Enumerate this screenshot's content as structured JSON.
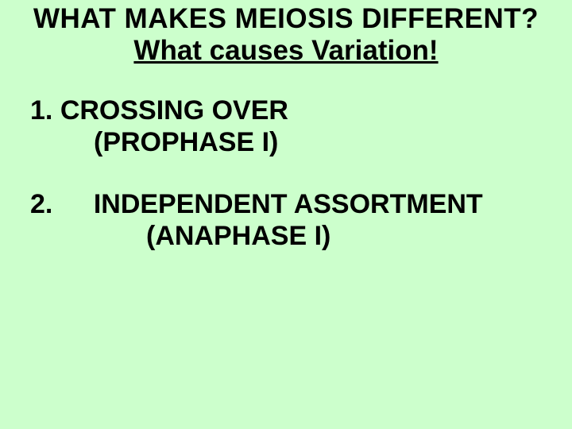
{
  "colors": {
    "background": "#ccffcc",
    "text": "#000000"
  },
  "typography": {
    "family": "Comic Sans MS",
    "title_fontsize_pt": 35,
    "body_fontsize_pt": 34,
    "weight": "bold"
  },
  "title": {
    "line1": "WHAT MAKES MEIOSIS DIFFERENT?",
    "line2": "What causes Variation!"
  },
  "items": [
    {
      "number": "1.",
      "main": "CROSSING OVER",
      "phase": "(PROPHASE I)"
    },
    {
      "number": "2.",
      "main": "INDEPENDENT ASSORTMENT",
      "phase": "(ANAPHASE I)"
    }
  ]
}
